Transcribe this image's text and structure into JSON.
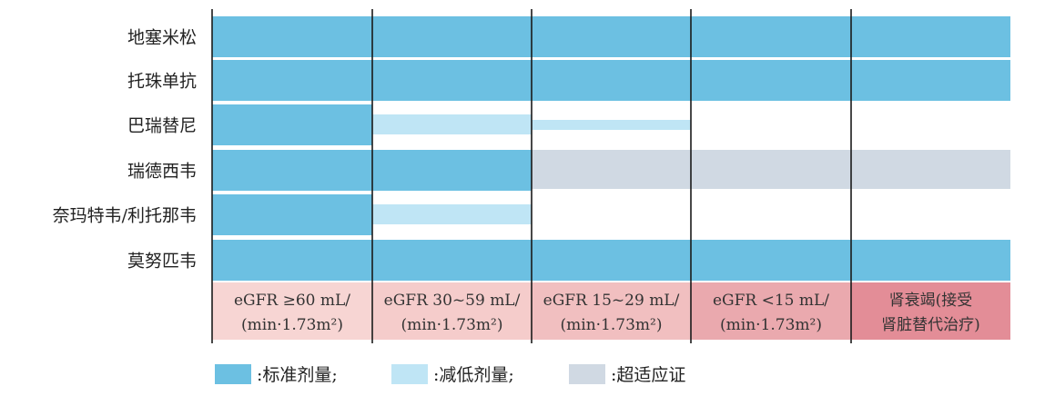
{
  "chart_data": {
    "type": "table",
    "drugs": [
      "地塞米松",
      "托珠单抗",
      "巴瑞替尼",
      "瑞德西韦",
      "奈玛特韦/利托那韦",
      "莫努匹韦"
    ],
    "egfr_groups": [
      {
        "line1": "eGFR ≥60 mL/",
        "line2": "(min·1.73m²)",
        "color": "#f7d5d3"
      },
      {
        "line1": "eGFR 30~59 mL/",
        "line2": "(min·1.73m²)",
        "color": "#f5cccb"
      },
      {
        "line1": "eGFR 15~29 mL/",
        "line2": "(min·1.73m²)",
        "color": "#f1bfc0"
      },
      {
        "line1": "eGFR <15 mL/",
        "line2": "(min·1.73m²)",
        "color": "#eaa9ae"
      },
      {
        "line1": "肾衰竭(接受",
        "line2": "肾脏替代治疗)",
        "color": "#e38d97"
      }
    ],
    "dose_matrix": [
      [
        "standard",
        "standard",
        "standard",
        "standard",
        "standard"
      ],
      [
        "standard",
        "standard",
        "standard",
        "standard",
        "standard"
      ],
      [
        "standard",
        "reduced",
        "reduced_thin",
        "none",
        "none"
      ],
      [
        "standard",
        "standard",
        "unsuitable",
        "unsuitable",
        "unsuitable"
      ],
      [
        "standard",
        "reduced",
        "none",
        "none",
        "none"
      ],
      [
        "standard",
        "standard",
        "standard",
        "standard",
        "standard"
      ]
    ],
    "legend": [
      {
        "key": "standard",
        "label": ":标准剂量;",
        "color": "#6cc0e2"
      },
      {
        "key": "reduced",
        "label": ":减低剂量;",
        "color": "#bfe5f5"
      },
      {
        "key": "unsuitable",
        "label": ":超适应证",
        "color": "#d0d9e3"
      }
    ]
  }
}
